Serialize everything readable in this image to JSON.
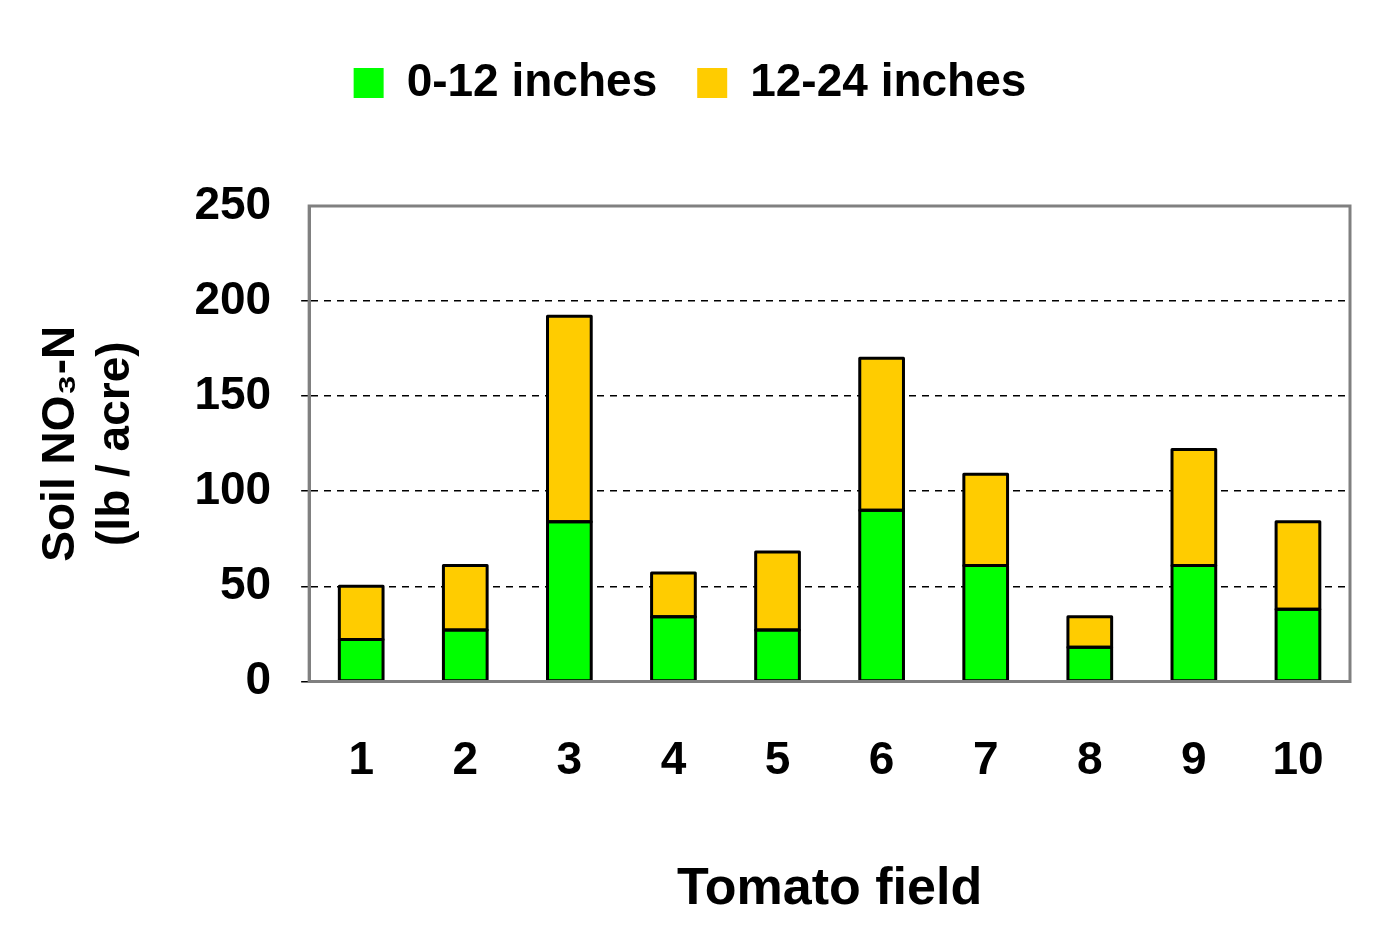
{
  "chart_data": {
    "type": "bar",
    "stacked": true,
    "xlabel": "Tomato field",
    "ylabel": "Soil NO₃-N\n(lb / acre)",
    "categories": [
      "1",
      "2",
      "3",
      "4",
      "5",
      "6",
      "7",
      "8",
      "9",
      "10"
    ],
    "series": [
      {
        "name": "0-12 inches",
        "color": "#00ff00",
        "values": [
          22,
          27,
          84,
          34,
          27,
          90,
          61,
          18,
          61,
          38
        ]
      },
      {
        "name": "12-24 inches",
        "color": "#ffcc00",
        "values": [
          28,
          34,
          108,
          23,
          41,
          80,
          48,
          16,
          61,
          46
        ]
      }
    ],
    "ylim": [
      0,
      250
    ],
    "yticks": [
      0,
      50,
      100,
      150,
      200,
      250
    ],
    "grid": "y",
    "legend": "top"
  }
}
